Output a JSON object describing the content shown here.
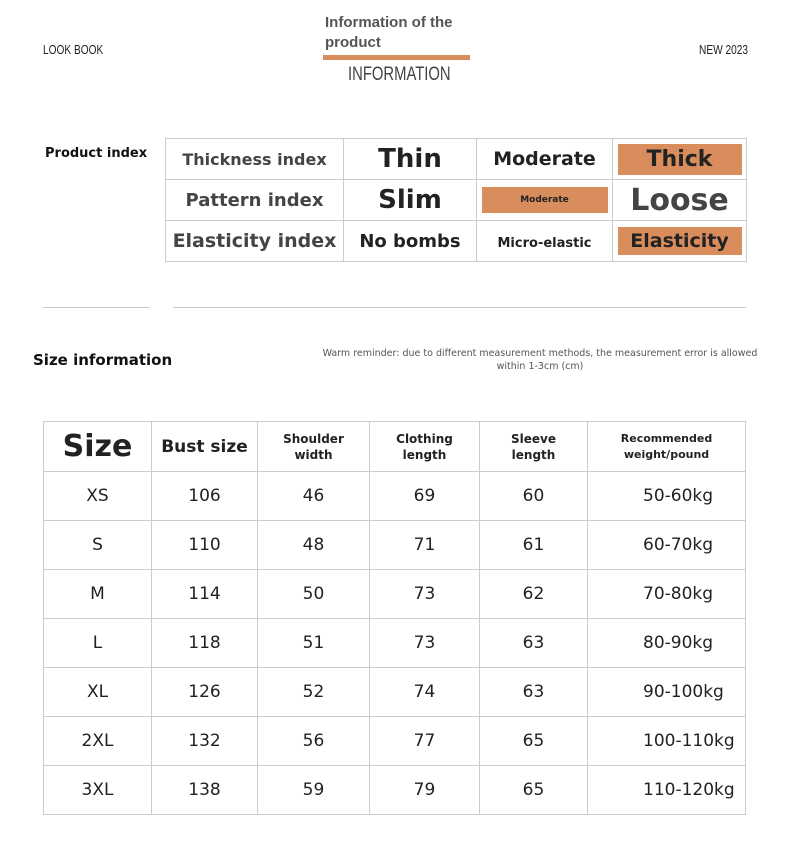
{
  "header": {
    "left": "LOOK BOOK",
    "right": "NEW 2023",
    "title": "Information of the product",
    "subtitle": "INFORMATION",
    "accent": "#d98c5c"
  },
  "product_index": {
    "label": "Product index",
    "rows": [
      {
        "name": "Thickness index",
        "options": [
          "Thin",
          "Moderate",
          "Thick"
        ],
        "selected": 2
      },
      {
        "name": "Pattern index",
        "options": [
          "Slim",
          "Moderate",
          "Loose"
        ],
        "selected": 1
      },
      {
        "name": "Elasticity index",
        "options": [
          "No bombs",
          "Micro-elastic",
          "Elasticity"
        ],
        "selected": 2
      }
    ]
  },
  "size_info": {
    "label": "Size information",
    "reminder": "Warm reminder: due to different measurement methods, the measurement error is allowed within 1-3cm (cm)",
    "headers": [
      "Size",
      "Bust size",
      "Shoulder width",
      "Clothing length",
      "Sleeve length",
      "Recommended weight/pound"
    ],
    "rows": [
      [
        "XS",
        "106",
        "46",
        "69",
        "60",
        "50-60kg"
      ],
      [
        "S",
        "110",
        "48",
        "71",
        "61",
        "60-70kg"
      ],
      [
        "M",
        "114",
        "50",
        "73",
        "62",
        "70-80kg"
      ],
      [
        "L",
        "118",
        "51",
        "73",
        "63",
        "80-90kg"
      ],
      [
        "XL",
        "126",
        "52",
        "74",
        "63",
        "90-100kg"
      ],
      [
        "2XL",
        "132",
        "56",
        "77",
        "65",
        "100-110kg"
      ],
      [
        "3XL",
        "138",
        "59",
        "79",
        "65",
        "110-120kg"
      ]
    ]
  }
}
